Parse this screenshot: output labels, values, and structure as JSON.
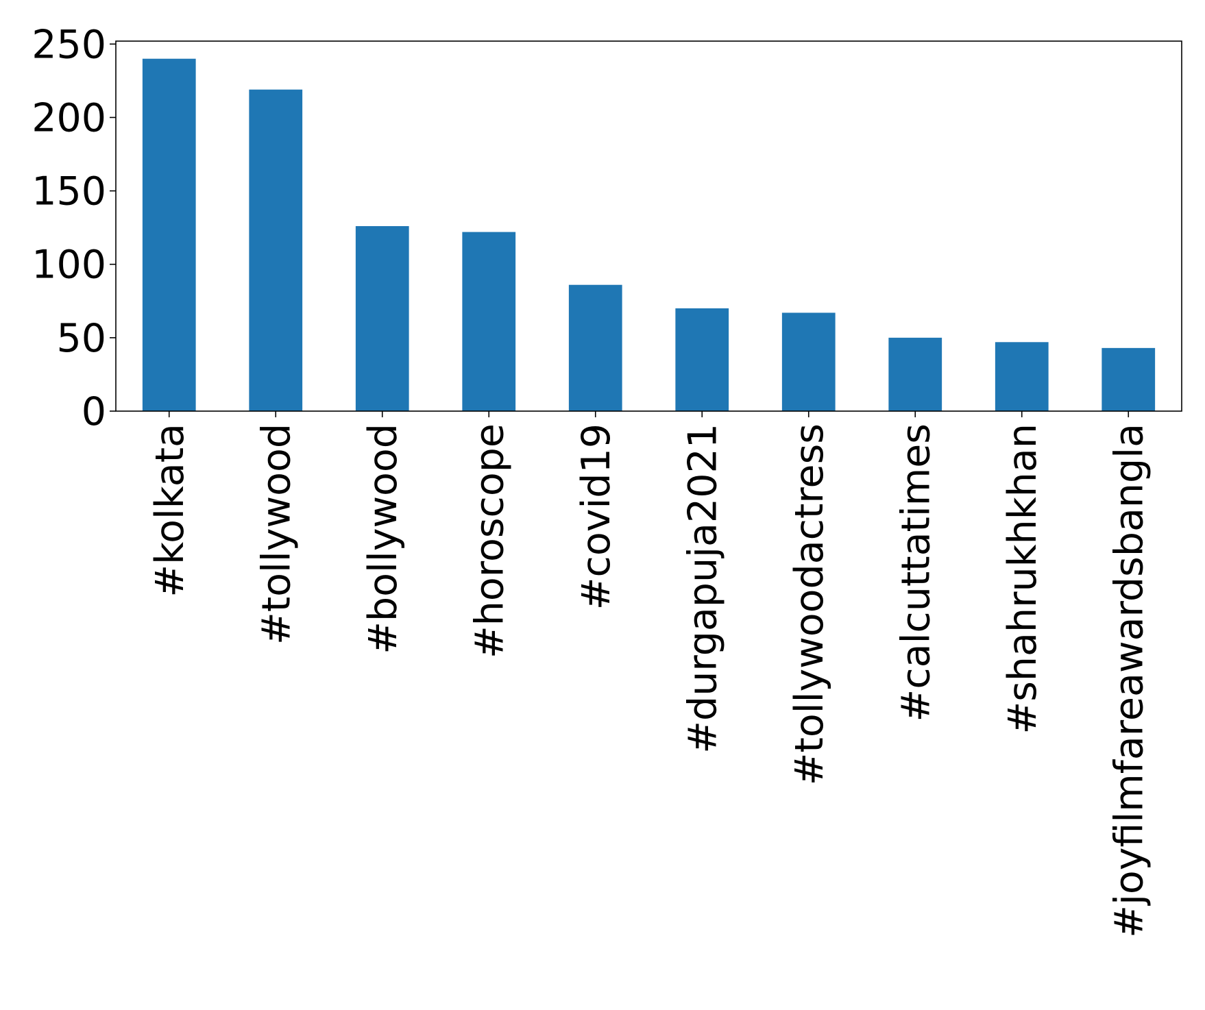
{
  "chart_data": {
    "type": "bar",
    "title": "",
    "xlabel": "",
    "ylabel": "",
    "categories": [
      "#kolkata",
      "#tollywood",
      "#bollywood",
      "#horoscope",
      "#covid19",
      "#durgapuja2021",
      "#tollywoodactress",
      "#calcuttatimes",
      "#shahrukhkhan",
      "#joyfilmfareawardsbangla"
    ],
    "values": [
      240,
      219,
      126,
      122,
      86,
      70,
      67,
      50,
      47,
      43
    ],
    "ylim": [
      0,
      252
    ],
    "yticks": [
      0,
      50,
      100,
      150,
      200,
      250
    ],
    "grid": false,
    "legend": "none",
    "bar_color": "#1f77b4",
    "axis_color": "#000000"
  }
}
